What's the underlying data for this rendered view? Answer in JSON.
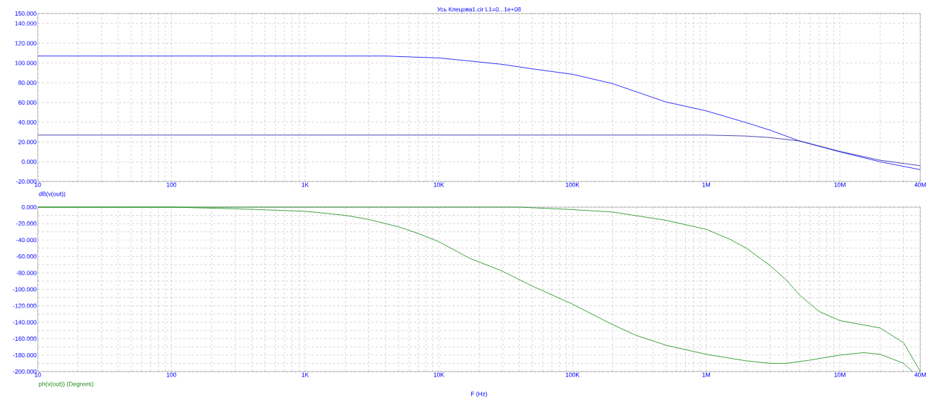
{
  "chart_data": [
    {
      "type": "line",
      "title": "Усь Клецова1.cir L1=0...1e+08",
      "annotations": [
        "dB(v(out))"
      ],
      "log": "x",
      "grid": true,
      "xlim": [
        10,
        40000000
      ],
      "ylim": [
        -20,
        150
      ],
      "xticks": [
        {
          "value": 10,
          "label": "10"
        },
        {
          "value": 100,
          "label": "100"
        },
        {
          "value": 1000,
          "label": "1K"
        },
        {
          "value": 10000,
          "label": "10K"
        },
        {
          "value": 100000,
          "label": "100K"
        },
        {
          "value": 1000000,
          "label": "1M"
        },
        {
          "value": 10000000,
          "label": "10M"
        },
        {
          "value": 40000000,
          "label": "40M"
        }
      ],
      "yticks": [
        {
          "value": -20,
          "label": "-20.000"
        },
        {
          "value": 0,
          "label": "0.000"
        },
        {
          "value": 20,
          "label": "20.000"
        },
        {
          "value": 40,
          "label": "40.000"
        },
        {
          "value": 60,
          "label": "60.000"
        },
        {
          "value": 80,
          "label": "80.000"
        },
        {
          "value": 100,
          "label": "100.000"
        },
        {
          "value": 120,
          "label": "120.000"
        },
        {
          "value": 140,
          "label": "140.000"
        },
        {
          "value": 150,
          "label": "150.000"
        }
      ],
      "series": [
        {
          "color": "#0000ff",
          "x": [
            10,
            1000,
            4000,
            10000,
            16900,
            30000,
            50000,
            100000,
            200000,
            500000,
            1000000,
            2000000,
            3000000,
            5000000,
            10000000,
            20000000,
            40000000
          ],
          "values": [
            107,
            107,
            107,
            105,
            102,
            98.5,
            94,
            88.5,
            79,
            60.5,
            51.5,
            39.5,
            32,
            21,
            10,
            0,
            -8
          ]
        },
        {
          "color": "#1c1c9c",
          "x": [
            10,
            1000,
            1000000,
            2000000,
            3000000,
            5000000,
            10000000,
            20000000,
            40000000
          ],
          "values": [
            27,
            27,
            27,
            26,
            24.5,
            21,
            10.5,
            1.5,
            -4
          ]
        }
      ]
    },
    {
      "type": "line",
      "annotations": [
        "ph(v(out)) (Degrees)"
      ],
      "xlabel": "F (Hz)",
      "log": "x",
      "grid": true,
      "xlim": [
        10,
        40000000
      ],
      "ylim": [
        -200,
        0
      ],
      "xticks": [
        {
          "value": 10,
          "label": "10"
        },
        {
          "value": 100,
          "label": "100"
        },
        {
          "value": 1000,
          "label": "1K"
        },
        {
          "value": 10000,
          "label": "10K"
        },
        {
          "value": 100000,
          "label": "100K"
        },
        {
          "value": 1000000,
          "label": "1M"
        },
        {
          "value": 10000000,
          "label": "10M"
        },
        {
          "value": 40000000,
          "label": "40M"
        }
      ],
      "yticks": [
        {
          "value": -200,
          "label": "-200.000"
        },
        {
          "value": -180,
          "label": "-180.000"
        },
        {
          "value": -160,
          "label": "-160.000"
        },
        {
          "value": -140,
          "label": "-140.000"
        },
        {
          "value": -120,
          "label": "-120.000"
        },
        {
          "value": -100,
          "label": "-100.000"
        },
        {
          "value": -80,
          "label": "-80.000"
        },
        {
          "value": -60,
          "label": "-60.000"
        },
        {
          "value": -40,
          "label": "-40.000"
        },
        {
          "value": -20,
          "label": "-20.000"
        },
        {
          "value": 0,
          "label": "0.000"
        }
      ],
      "series": [
        {
          "color": "#108a10",
          "x": [
            10,
            100,
            300,
            1000,
            2000,
            3000,
            5000,
            7000,
            10000,
            16900,
            30000,
            50000,
            100000,
            200000,
            300000,
            500000,
            1000000,
            2000000,
            3000000,
            4000000,
            6000000,
            10000000,
            15000000,
            20000000,
            30000000,
            35000000
          ],
          "values": [
            0,
            0,
            -2,
            -5,
            -10,
            -15,
            -24,
            -32,
            -42,
            -62,
            -78,
            -96,
            -118,
            -143,
            -156,
            -168,
            -179,
            -187,
            -190,
            -190,
            -186,
            -180,
            -177,
            -179,
            -190,
            -200
          ]
        },
        {
          "color": "#108a10",
          "x": [
            10,
            40000,
            100000,
            200000,
            500000,
            1000000,
            1500000,
            2000000,
            3000000,
            4000000,
            5000000,
            7000000,
            10000000,
            20000000,
            30000000,
            40000000
          ],
          "values": [
            0,
            0,
            -3,
            -6,
            -16,
            -27,
            -39,
            -50,
            -71,
            -89,
            -107,
            -127,
            -138,
            -147,
            -165,
            -200
          ]
        }
      ]
    }
  ]
}
